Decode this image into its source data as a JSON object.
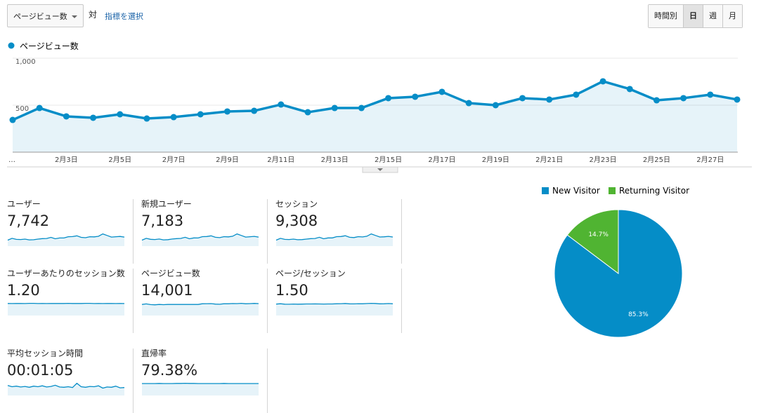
{
  "toolbar": {
    "metric_select": "ページビュー数",
    "vs": "対",
    "select_metric": "指標を選択",
    "buttons": [
      "時間別",
      "日",
      "週",
      "月"
    ],
    "active_button": "日"
  },
  "chart_data": [
    {
      "type": "line",
      "categories": [
        "…",
        null,
        "2月3日",
        null,
        "2月5日",
        null,
        "2月7日",
        null,
        "2月9日",
        null,
        "2月11日",
        null,
        "2月13日",
        null,
        "2月15日",
        null,
        "2月17日",
        null,
        "2月19日",
        null,
        "2月21日",
        null,
        "2月23日",
        null,
        "2月25日",
        null,
        "2月27日",
        null
      ],
      "series": [
        {
          "name": "ページビュー数",
          "color": "#058dc7",
          "values": [
            343,
            470,
            381,
            366,
            403,
            358,
            373,
            403,
            433,
            440,
            507,
            425,
            470,
            470,
            575,
            590,
            642,
            522,
            500,
            575,
            560,
            612,
            754,
            672,
            552,
            575,
            612,
            560
          ]
        }
      ],
      "ylim": [
        0,
        1000
      ],
      "yticks": [
        500,
        {
          "value": 1000,
          "label": "1,000"
        }
      ],
      "grid": true
    },
    {
      "type": "pie",
      "categories": [
        "New Visitor",
        "Returning Visitor"
      ],
      "values": [
        85.3,
        14.7
      ],
      "value_labels": [
        "85.3%",
        "14.7%"
      ],
      "colors": [
        "#058dc7",
        "#50b432"
      ],
      "legend": "top"
    }
  ],
  "metrics": [
    {
      "label": "ユーザー",
      "value": "7,742",
      "sparkline": [
        190,
        250,
        215,
        210,
        225,
        200,
        205,
        225,
        240,
        245,
        280,
        235,
        260,
        260,
        300,
        305,
        330,
        280,
        270,
        300,
        295,
        315,
        390,
        340,
        290,
        300,
        310,
        290
      ]
    },
    {
      "label": "新規ユーザー",
      "value": "7,183",
      "sparkline": [
        175,
        230,
        200,
        195,
        210,
        185,
        190,
        210,
        222,
        228,
        260,
        218,
        242,
        240,
        280,
        283,
        305,
        260,
        250,
        280,
        273,
        292,
        360,
        315,
        268,
        278,
        288,
        268
      ]
    },
    {
      "label": "セッション",
      "value": "9,308",
      "sparkline": [
        230,
        300,
        260,
        255,
        270,
        245,
        250,
        270,
        290,
        295,
        340,
        285,
        315,
        315,
        365,
        370,
        400,
        340,
        330,
        365,
        355,
        380,
        470,
        410,
        350,
        360,
        375,
        350
      ]
    },
    {
      "label": "ユーザーあたりのセッション数",
      "value": "1.20",
      "sparkline": [
        1.21,
        1.2,
        1.21,
        1.21,
        1.2,
        1.22,
        1.22,
        1.2,
        1.21,
        1.2,
        1.21,
        1.21,
        1.21,
        1.21,
        1.22,
        1.21,
        1.21,
        1.21,
        1.22,
        1.22,
        1.2,
        1.21,
        1.2,
        1.21,
        1.21,
        1.2,
        1.21,
        1.2
      ]
    },
    {
      "label": "ページビュー数",
      "value": "14,001",
      "sparkline": [
        1.49,
        1.57,
        1.47,
        1.44,
        1.49,
        1.46,
        1.49,
        1.49,
        1.49,
        1.49,
        1.49,
        1.49,
        1.49,
        1.49,
        1.58,
        1.59,
        1.6,
        1.54,
        1.52,
        1.58,
        1.58,
        1.61,
        1.6,
        1.64,
        1.58,
        1.6,
        1.63,
        1.6
      ]
    },
    {
      "label": "ページ/セッション",
      "value": "1.50",
      "sparkline": [
        1.47,
        1.52,
        1.46,
        1.45,
        1.48,
        1.46,
        1.47,
        1.49,
        1.49,
        1.5,
        1.49,
        1.48,
        1.49,
        1.49,
        1.52,
        1.53,
        1.55,
        1.51,
        1.5,
        1.53,
        1.52,
        1.54,
        1.57,
        1.55,
        1.51,
        1.52,
        1.54,
        1.52
      ]
    },
    {
      "label": "平均セッション時間",
      "value": "00:01:05",
      "sparkline": [
        70,
        62,
        66,
        60,
        64,
        58,
        66,
        62,
        68,
        60,
        64,
        72,
        60,
        58,
        62,
        56,
        86,
        62,
        58,
        64,
        62,
        68,
        52,
        60,
        58,
        66,
        54,
        56
      ]
    },
    {
      "label": "直帰率",
      "value": "79.38%",
      "sparkline": [
        79,
        79,
        79,
        79,
        80,
        79,
        79,
        79,
        80,
        80,
        81,
        80,
        80,
        79,
        79,
        79,
        79,
        79,
        79,
        80,
        79,
        79,
        79,
        79,
        79,
        79,
        79,
        79
      ]
    }
  ]
}
